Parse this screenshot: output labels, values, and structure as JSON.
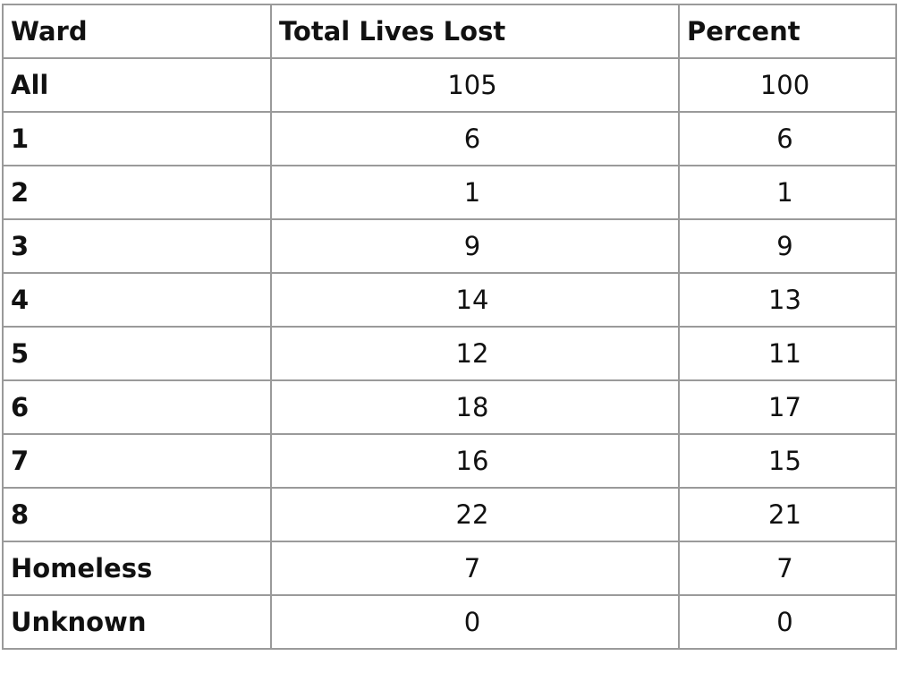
{
  "table": {
    "headers": [
      "Ward",
      "Total Lives Lost",
      "Percent"
    ],
    "rows": [
      {
        "ward": "All",
        "lives": "105",
        "percent": "100"
      },
      {
        "ward": "1",
        "lives": "6",
        "percent": "6"
      },
      {
        "ward": "2",
        "lives": "1",
        "percent": "1"
      },
      {
        "ward": "3",
        "lives": "9",
        "percent": "9"
      },
      {
        "ward": "4",
        "lives": "14",
        "percent": "13"
      },
      {
        "ward": "5",
        "lives": "12",
        "percent": "11"
      },
      {
        "ward": "6",
        "lives": "18",
        "percent": "17"
      },
      {
        "ward": "7",
        "lives": "16",
        "percent": "15"
      },
      {
        "ward": "8",
        "lives": "22",
        "percent": "21"
      },
      {
        "ward": "Homeless",
        "lives": "7",
        "percent": "7"
      },
      {
        "ward": "Unknown",
        "lives": "0",
        "percent": "0"
      }
    ]
  }
}
